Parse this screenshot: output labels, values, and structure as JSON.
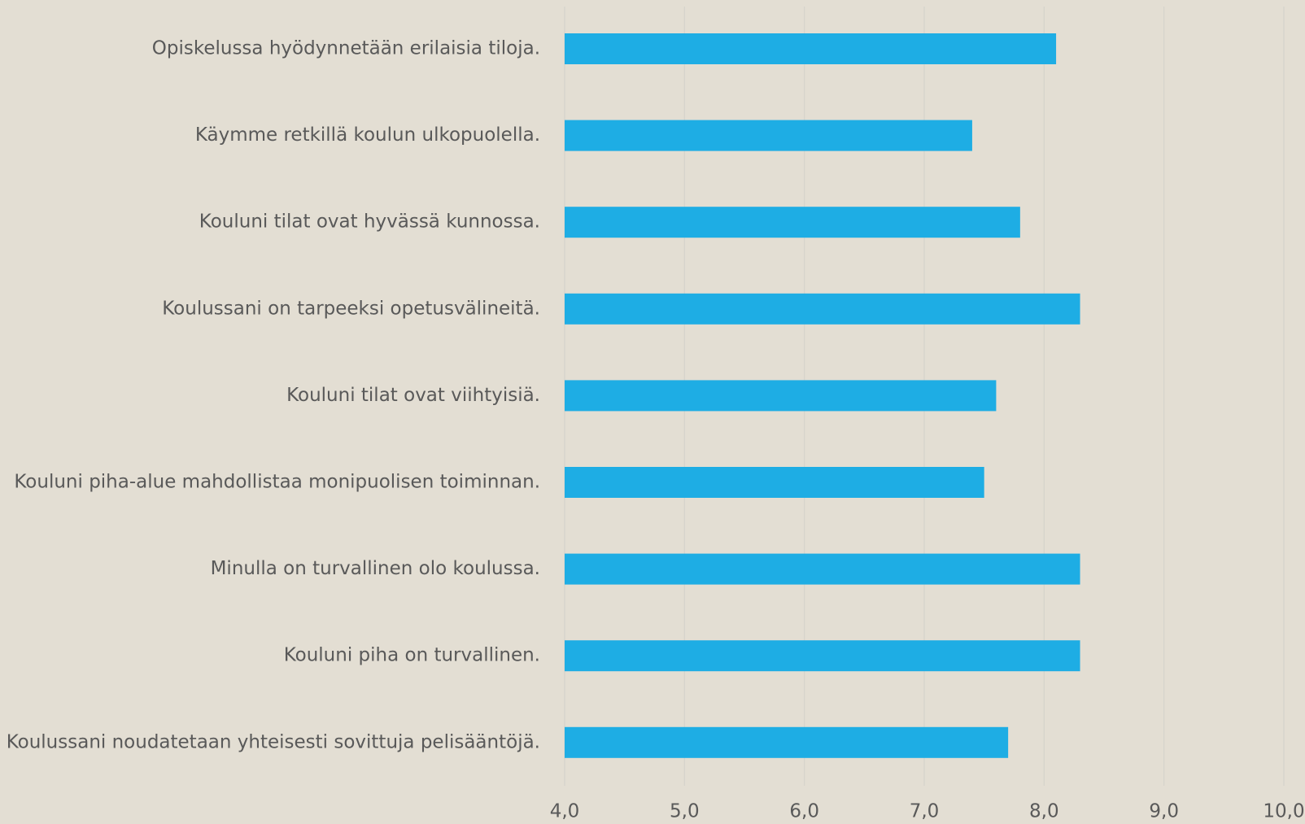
{
  "chart_data": {
    "type": "barh",
    "categories": [
      "Opiskelussa hyödynnetään erilaisia tiloja.",
      "Käymme retkillä koulun ulkopuolella.",
      "Kouluni tilat ovat hyvässä kunnossa.",
      "Koulussani on tarpeeksi opetusvälineitä.",
      "Kouluni tilat ovat viihtyisiä.",
      "Kouluni piha-alue mahdollistaa monipuolisen toiminnan.",
      "Minulla on turvallinen olo koulussa.",
      "Kouluni piha on turvallinen.",
      "Koulussani noudatetaan yhteisesti sovittuja pelisääntöjä."
    ],
    "values": [
      8.1,
      7.4,
      7.8,
      8.3,
      7.6,
      7.5,
      8.3,
      8.3,
      7.7
    ],
    "color": "#1eade4",
    "xlim": [
      4,
      10
    ],
    "xticks": [
      {
        "value": 4,
        "label": "4,0"
      },
      {
        "value": 5,
        "label": "5,0"
      },
      {
        "value": 6,
        "label": "6,0"
      },
      {
        "value": 7,
        "label": "7,0"
      },
      {
        "value": 8,
        "label": "8,0"
      },
      {
        "value": 9,
        "label": "9,0"
      },
      {
        "value": 10,
        "label": "10,0"
      }
    ],
    "grid": true
  }
}
